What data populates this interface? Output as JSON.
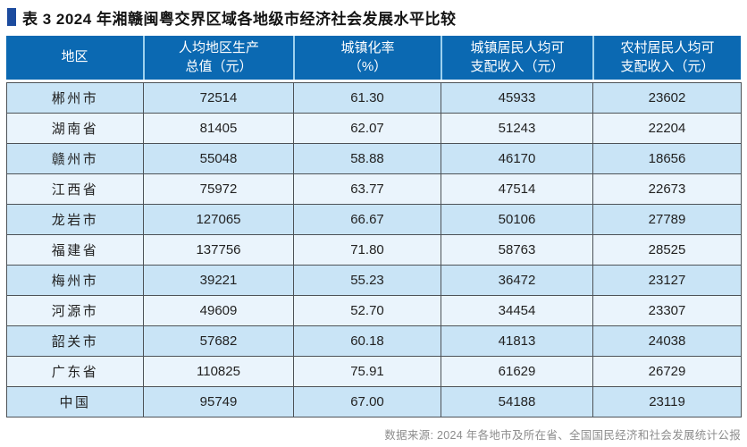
{
  "title": "表 3  2024 年湘赣闽粤交界区域各地级市经济社会发展水平比较",
  "source_note": "数据来源: 2024 年各地市及所在省、全国国民经济和社会发展统计公报",
  "colors": {
    "header_bg": "#0b69b2",
    "header_divider": "#9ed1ee",
    "row_odd_bg": "#c9e4f6",
    "row_even_bg": "#eaf4fc",
    "cell_border": "#4d5257",
    "title_bullet": "#1c4b9e",
    "source_text": "#8d8d8d"
  },
  "chart_data": {
    "type": "table",
    "title": "表 3  2024 年湘赣闽粤交界区域各地级市经济社会发展水平比较",
    "columns": [
      "地区",
      "人均地区生产总值（元）",
      "城镇化率（%）",
      "城镇居民人均可支配收入（元）",
      "农村居民人均可支配收入（元）"
    ],
    "header_lines": [
      [
        "地区",
        ""
      ],
      [
        "人均地区生产",
        "总值（元）"
      ],
      [
        "城镇化率",
        "（%）"
      ],
      [
        "城镇居民人均可",
        "支配收入（元）"
      ],
      [
        "农村居民人均可",
        "支配收入（元）"
      ]
    ],
    "rows": [
      [
        "郴州市",
        "72514",
        "61.30",
        "45933",
        "23602"
      ],
      [
        "湖南省",
        "81405",
        "62.07",
        "51243",
        "22204"
      ],
      [
        "赣州市",
        "55048",
        "58.88",
        "46170",
        "18656"
      ],
      [
        "江西省",
        "75972",
        "63.77",
        "47514",
        "22673"
      ],
      [
        "龙岩市",
        "127065",
        "66.67",
        "50106",
        "27789"
      ],
      [
        "福建省",
        "137756",
        "71.80",
        "58763",
        "28525"
      ],
      [
        "梅州市",
        "39221",
        "55.23",
        "36472",
        "23127"
      ],
      [
        "河源市",
        "49609",
        "52.70",
        "34454",
        "23307"
      ],
      [
        "韶关市",
        "57682",
        "60.18",
        "41813",
        "24038"
      ],
      [
        "广东省",
        "110825",
        "75.91",
        "61629",
        "26729"
      ],
      [
        "中国",
        "95749",
        "67.00",
        "54188",
        "23119"
      ]
    ],
    "source": "数据来源: 2024 年各地市及所在省、全国国民经济和社会发展统计公报"
  }
}
